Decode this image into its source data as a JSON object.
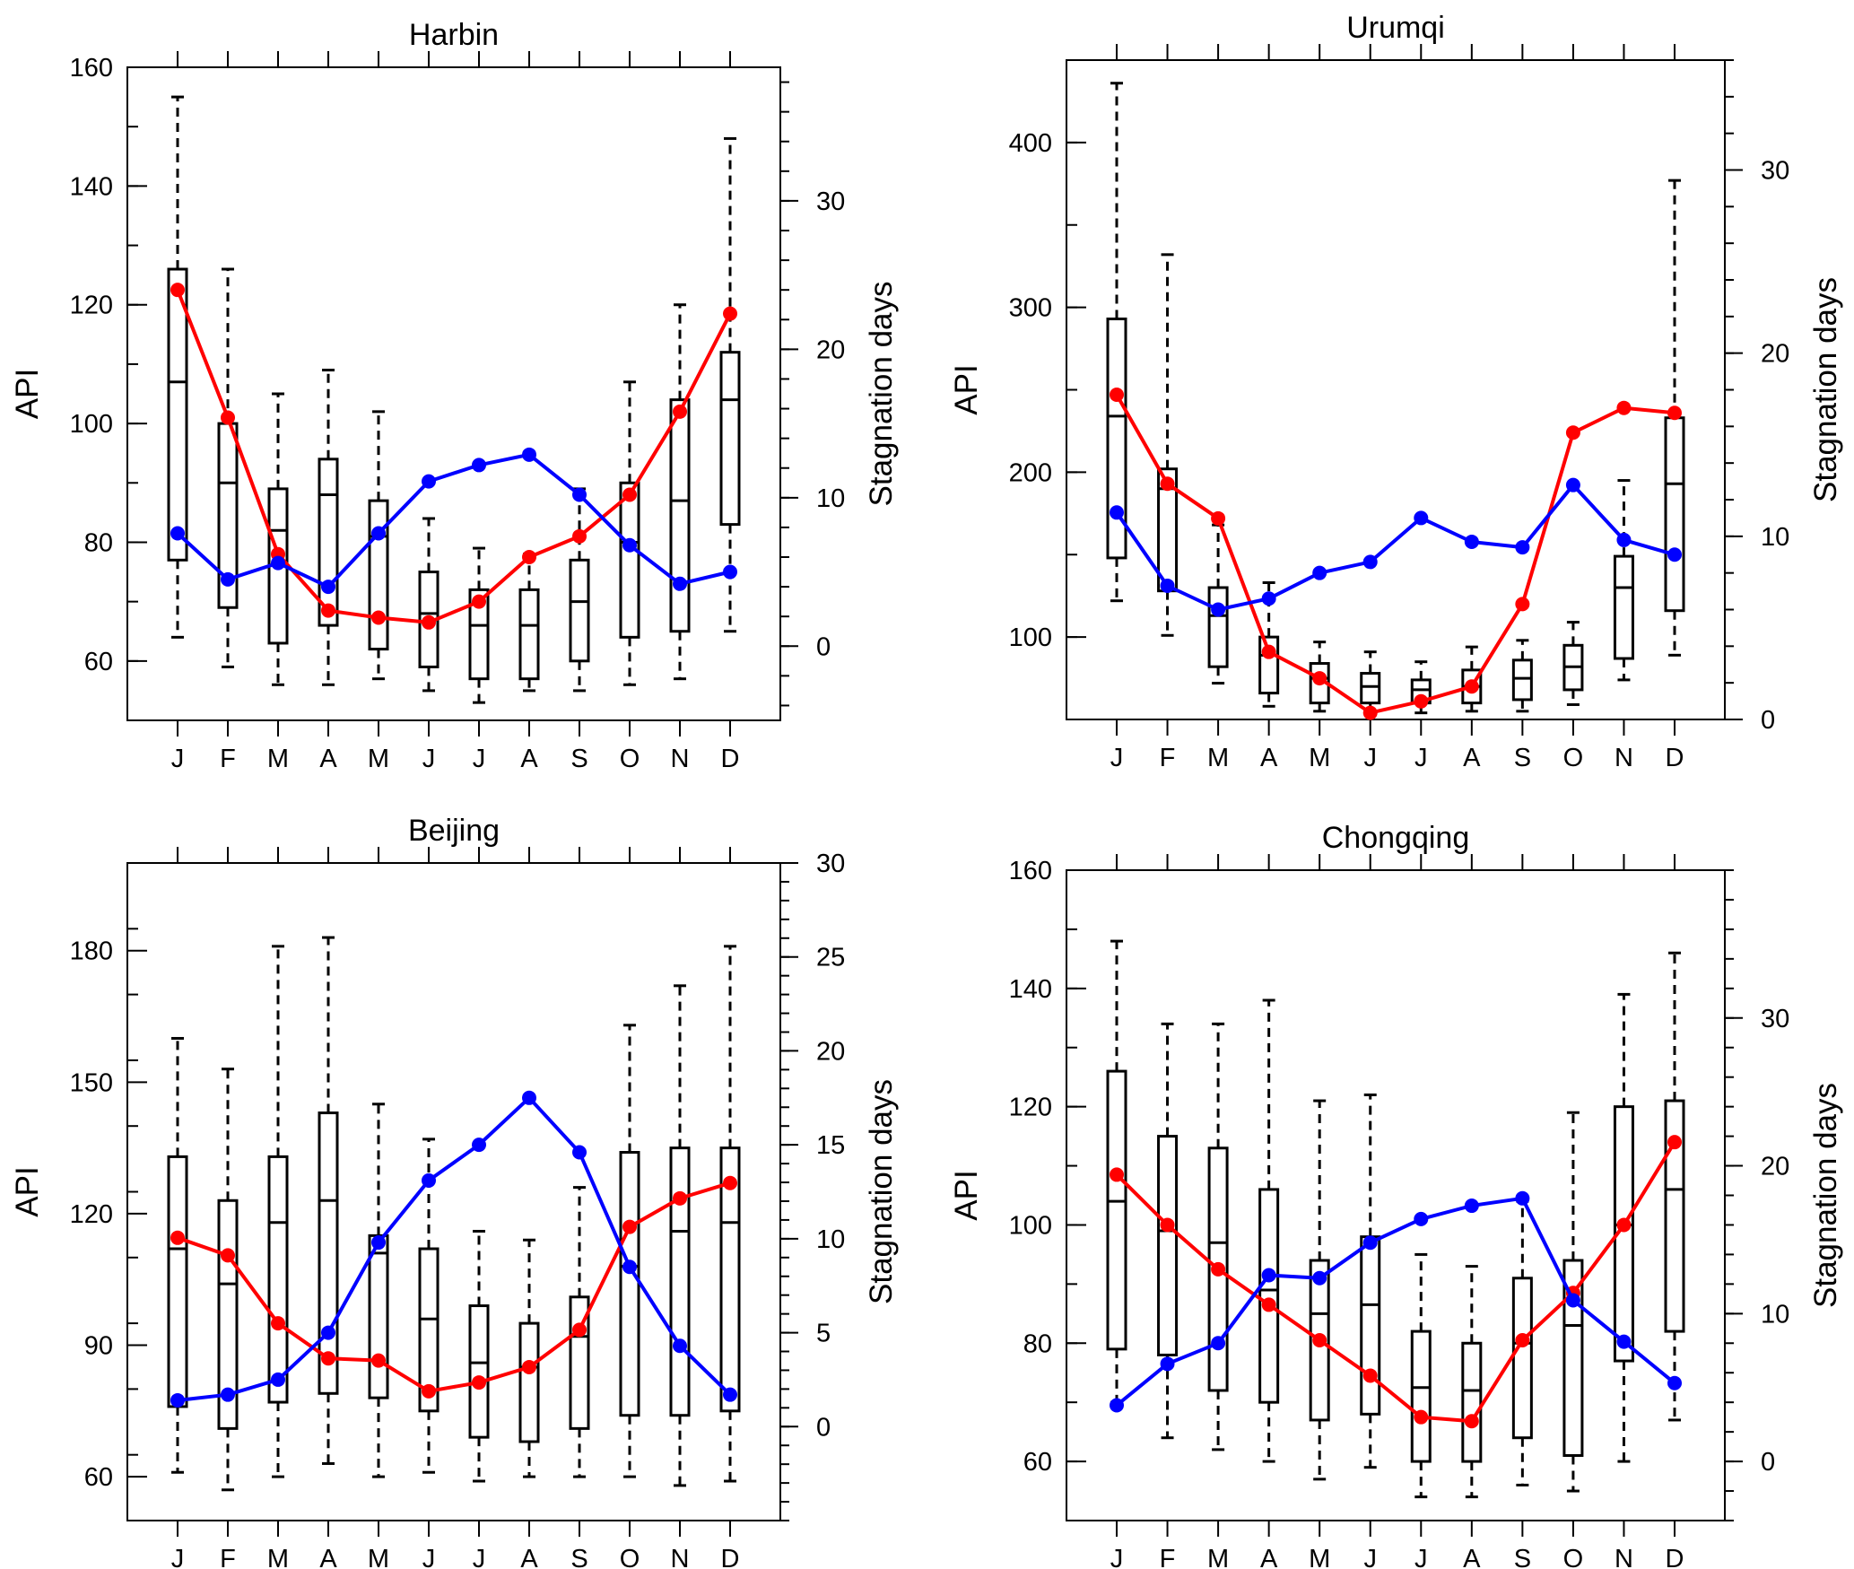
{
  "chart_data": [
    {
      "type": "box",
      "title": "Harbin",
      "categories": [
        "J",
        "F",
        "M",
        "A",
        "M",
        "J",
        "J",
        "A",
        "S",
        "O",
        "N",
        "D"
      ],
      "ylabel": "API",
      "y2label": "Stagnation days",
      "ylim": [
        50,
        160
      ],
      "y2lim": [
        -5,
        39
      ],
      "yticks": [
        60,
        80,
        100,
        120,
        140,
        160
      ],
      "y2ticks": [
        0,
        10,
        20,
        30
      ],
      "boxes": [
        {
          "whisker_low": 64,
          "q1": 77,
          "median": 107,
          "q3": 126,
          "whisker_high": 155
        },
        {
          "whisker_low": 59,
          "q1": 69,
          "median": 90,
          "q3": 100,
          "whisker_high": 126
        },
        {
          "whisker_low": 56,
          "q1": 63,
          "median": 82,
          "q3": 89,
          "whisker_high": 105
        },
        {
          "whisker_low": 56,
          "q1": 66,
          "median": 88,
          "q3": 94,
          "whisker_high": 109
        },
        {
          "whisker_low": 57,
          "q1": 62,
          "median": 81,
          "q3": 87,
          "whisker_high": 102
        },
        {
          "whisker_low": 55,
          "q1": 59,
          "median": 68,
          "q3": 75,
          "whisker_high": 84
        },
        {
          "whisker_low": 53,
          "q1": 57,
          "median": 66,
          "q3": 72,
          "whisker_high": 79
        },
        {
          "whisker_low": 55,
          "q1": 57,
          "median": 66,
          "q3": 72,
          "whisker_high": 78
        },
        {
          "whisker_low": 55,
          "q1": 60,
          "median": 70,
          "q3": 77,
          "whisker_high": 89
        },
        {
          "whisker_low": 56,
          "q1": 64,
          "median": 80,
          "q3": 90,
          "whisker_high": 107
        },
        {
          "whisker_low": 57,
          "q1": 65,
          "median": 87,
          "q3": 104,
          "whisker_high": 120
        },
        {
          "whisker_low": 65,
          "q1": 83,
          "median": 104,
          "q3": 112,
          "whisker_high": 148
        }
      ],
      "series": [
        {
          "color": "#ff0000",
          "axis": "left",
          "values": [
            122.5,
            101,
            78,
            68.5,
            67.3,
            66.5,
            70,
            77.5,
            81,
            88,
            102,
            118.5
          ]
        },
        {
          "color": "#0000ff",
          "axis": "right",
          "values": [
            7.6,
            4.5,
            5.6,
            4.0,
            7.6,
            11.1,
            12.2,
            12.9,
            10.2,
            6.8,
            4.2,
            5.0
          ]
        }
      ]
    },
    {
      "type": "box",
      "title": "Urumqi",
      "categories": [
        "J",
        "F",
        "M",
        "A",
        "M",
        "J",
        "J",
        "A",
        "S",
        "O",
        "N",
        "D"
      ],
      "ylabel": "API",
      "y2label": "Stagnation days",
      "ylim": [
        50,
        450
      ],
      "y2lim": [
        0,
        36
      ],
      "yticks": [
        100,
        200,
        300,
        400
      ],
      "y2ticks": [
        0,
        10,
        20,
        30
      ],
      "boxes": [
        {
          "whisker_low": 122,
          "q1": 148,
          "median": 234,
          "q3": 293,
          "whisker_high": 436
        },
        {
          "whisker_low": 101,
          "q1": 128,
          "median": 190,
          "q3": 202,
          "whisker_high": 332
        },
        {
          "whisker_low": 72,
          "q1": 82,
          "median": 113,
          "q3": 130,
          "whisker_high": 168
        },
        {
          "whisker_low": 58,
          "q1": 66,
          "median": 89,
          "q3": 100,
          "whisker_high": 133
        },
        {
          "whisker_low": 55,
          "q1": 60,
          "median": 75,
          "q3": 84,
          "whisker_high": 97
        },
        {
          "whisker_low": 55,
          "q1": 60,
          "median": 70,
          "q3": 78,
          "whisker_high": 91
        },
        {
          "whisker_low": 54,
          "q1": 60,
          "median": 68,
          "q3": 74,
          "whisker_high": 85
        },
        {
          "whisker_low": 55,
          "q1": 60,
          "median": 70,
          "q3": 80,
          "whisker_high": 94
        },
        {
          "whisker_low": 55,
          "q1": 62,
          "median": 75,
          "q3": 86,
          "whisker_high": 98
        },
        {
          "whisker_low": 59,
          "q1": 68,
          "median": 82,
          "q3": 95,
          "whisker_high": 109
        },
        {
          "whisker_low": 74,
          "q1": 87,
          "median": 130,
          "q3": 149,
          "whisker_high": 195
        },
        {
          "whisker_low": 89,
          "q1": 116,
          "median": 193,
          "q3": 233,
          "whisker_high": 377
        }
      ],
      "series": [
        {
          "color": "#ff0000",
          "axis": "left",
          "values": [
            247,
            193,
            172,
            91,
            75,
            54,
            61,
            70,
            120,
            224,
            239,
            236
          ]
        },
        {
          "color": "#0000ff",
          "axis": "right",
          "values": [
            11.3,
            7.3,
            6.0,
            6.6,
            8.0,
            8.6,
            11.0,
            9.7,
            9.4,
            12.8,
            9.8,
            9.0
          ]
        }
      ]
    },
    {
      "type": "box",
      "title": "Beijing",
      "categories": [
        "J",
        "F",
        "M",
        "A",
        "M",
        "J",
        "J",
        "A",
        "S",
        "O",
        "N",
        "D"
      ],
      "ylabel": "API",
      "y2label": "Stagnation days",
      "ylim": [
        50,
        200
      ],
      "y2lim": [
        -5,
        30
      ],
      "yticks": [
        60,
        90,
        120,
        150,
        180
      ],
      "y2ticks": [
        0,
        5,
        10,
        15,
        20,
        25,
        30
      ],
      "boxes": [
        {
          "whisker_low": 61,
          "q1": 76,
          "median": 112,
          "q3": 133,
          "whisker_high": 160
        },
        {
          "whisker_low": 57,
          "q1": 71,
          "median": 104,
          "q3": 123,
          "whisker_high": 153
        },
        {
          "whisker_low": 60,
          "q1": 77,
          "median": 118,
          "q3": 133,
          "whisker_high": 181
        },
        {
          "whisker_low": 63,
          "q1": 79,
          "median": 123,
          "q3": 143,
          "whisker_high": 183
        },
        {
          "whisker_low": 60,
          "q1": 78,
          "median": 111,
          "q3": 115,
          "whisker_high": 145
        },
        {
          "whisker_low": 61,
          "q1": 75,
          "median": 96,
          "q3": 112,
          "whisker_high": 137
        },
        {
          "whisker_low": 59,
          "q1": 69,
          "median": 86,
          "q3": 99,
          "whisker_high": 116
        },
        {
          "whisker_low": 60,
          "q1": 68,
          "median": 85,
          "q3": 95,
          "whisker_high": 114
        },
        {
          "whisker_low": 60,
          "q1": 71,
          "median": 92,
          "q3": 101,
          "whisker_high": 126
        },
        {
          "whisker_low": 60,
          "q1": 74,
          "median": 108,
          "q3": 134,
          "whisker_high": 163
        },
        {
          "whisker_low": 58,
          "q1": 74,
          "median": 116,
          "q3": 135,
          "whisker_high": 172
        },
        {
          "whisker_low": 59,
          "q1": 75,
          "median": 118,
          "q3": 135,
          "whisker_high": 181
        }
      ],
      "series": [
        {
          "color": "#ff0000",
          "axis": "left",
          "values": [
            114.5,
            110.5,
            95,
            87,
            86.5,
            79.5,
            81.5,
            85,
            93.5,
            117,
            123.5,
            127
          ]
        },
        {
          "color": "#0000ff",
          "axis": "right",
          "values": [
            1.4,
            1.7,
            2.5,
            5.0,
            9.8,
            13.1,
            15.0,
            17.5,
            14.6,
            8.5,
            4.3,
            1.7
          ]
        }
      ]
    },
    {
      "type": "box",
      "title": "Chongqing",
      "categories": [
        "J",
        "F",
        "M",
        "A",
        "M",
        "J",
        "J",
        "A",
        "S",
        "O",
        "N",
        "D"
      ],
      "ylabel": "API",
      "y2label": "Stagnation days",
      "ylim": [
        50,
        160
      ],
      "y2lim": [
        -4,
        40
      ],
      "yticks": [
        60,
        80,
        100,
        120,
        140,
        160
      ],
      "y2ticks": [
        0,
        10,
        20,
        30
      ],
      "boxes": [
        {
          "whisker_low": 70,
          "q1": 79,
          "median": 104,
          "q3": 126,
          "whisker_high": 148
        },
        {
          "whisker_low": 64,
          "q1": 78,
          "median": 99,
          "q3": 115,
          "whisker_high": 134
        },
        {
          "whisker_low": 62,
          "q1": 72,
          "median": 97,
          "q3": 113,
          "whisker_high": 134
        },
        {
          "whisker_low": 60,
          "q1": 70,
          "median": 89,
          "q3": 106,
          "whisker_high": 138
        },
        {
          "whisker_low": 57,
          "q1": 67,
          "median": 85,
          "q3": 94,
          "whisker_high": 121
        },
        {
          "whisker_low": 59,
          "q1": 68,
          "median": 86.5,
          "q3": 98,
          "whisker_high": 122
        },
        {
          "whisker_low": 54,
          "q1": 60,
          "median": 72.5,
          "q3": 82,
          "whisker_high": 95
        },
        {
          "whisker_low": 54,
          "q1": 60,
          "median": 72,
          "q3": 80,
          "whisker_high": 93
        },
        {
          "whisker_low": 56,
          "q1": 64,
          "median": 80,
          "q3": 91,
          "whisker_high": 104
        },
        {
          "whisker_low": 55,
          "q1": 61,
          "median": 83,
          "q3": 94,
          "whisker_high": 119
        },
        {
          "whisker_low": 60,
          "q1": 77,
          "median": 100,
          "q3": 120,
          "whisker_high": 139
        },
        {
          "whisker_low": 67,
          "q1": 82,
          "median": 106,
          "q3": 121,
          "whisker_high": 146
        }
      ],
      "series": [
        {
          "color": "#ff0000",
          "axis": "left",
          "values": [
            108.5,
            100,
            92.5,
            86.5,
            80.5,
            74.5,
            67.5,
            66.8,
            80.5,
            88.5,
            100,
            114
          ]
        },
        {
          "color": "#0000ff",
          "axis": "right",
          "values": [
            3.8,
            6.6,
            8.0,
            12.6,
            12.4,
            14.8,
            16.4,
            17.3,
            17.8,
            10.9,
            8.1,
            5.3
          ]
        }
      ]
    }
  ]
}
